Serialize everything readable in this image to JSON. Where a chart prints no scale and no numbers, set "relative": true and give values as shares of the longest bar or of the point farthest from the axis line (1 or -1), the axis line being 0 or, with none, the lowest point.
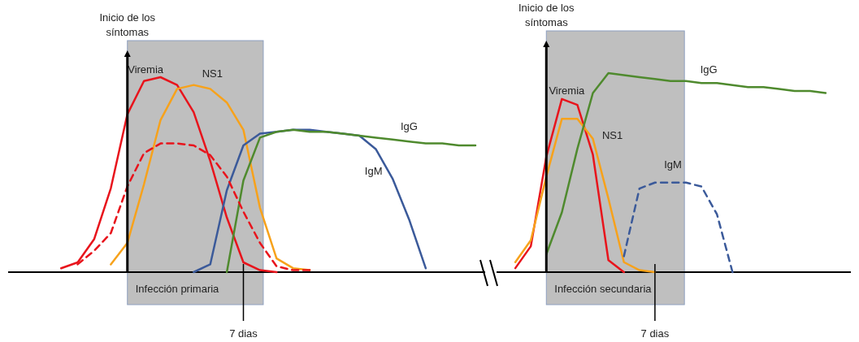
{
  "chart_data": [
    {
      "type": "line",
      "relative": true,
      "categories": [
        null,
        null,
        null,
        null,
        null,
        null,
        null,
        null,
        null,
        null,
        null,
        null,
        null,
        null,
        null,
        null,
        null,
        null,
        null,
        null,
        null,
        null,
        null,
        null,
        null,
        null,
        null,
        null,
        null
      ],
      "annotations": [
        "Inicio de los síntomas",
        "7 dias",
        "Infección primaria"
      ],
      "series": [
        {
          "name": "Viremia",
          "color": "#e8141c",
          "values": [
            null,
            null,
            null,
            0.02,
            0.05,
            0.17,
            0.43,
            0.81,
            0.98,
            1.0,
            0.96,
            0.82,
            0.57,
            0.28,
            0.05,
            0.01,
            0,
            null,
            null,
            null,
            null,
            null,
            null,
            null,
            null,
            null,
            null,
            null,
            null
          ]
        },
        {
          "color": "#e8141c",
          "line_style": "dashed",
          "values": [
            null,
            null,
            null,
            null,
            0.04,
            0.11,
            0.2,
            0.44,
            0.61,
            0.66,
            0.66,
            0.65,
            0.6,
            0.49,
            0.31,
            0.15,
            0.03,
            0.01,
            0.01,
            null,
            null,
            null,
            null,
            null,
            null,
            null,
            null,
            null,
            null
          ]
        },
        {
          "name": "NS1",
          "color": "#f7a21b",
          "values": [
            null,
            null,
            null,
            null,
            null,
            null,
            0.04,
            0.15,
            0.45,
            0.78,
            0.94,
            0.96,
            0.94,
            0.87,
            0.73,
            0.33,
            0.07,
            0.02,
            0.01,
            null,
            null,
            null,
            null,
            null,
            null,
            null,
            null,
            null,
            null
          ]
        },
        {
          "name": "IgM",
          "color": "#3b5a9a",
          "values": [
            null,
            null,
            null,
            null,
            null,
            null,
            null,
            null,
            null,
            null,
            null,
            0,
            0.04,
            0.42,
            0.65,
            0.71,
            0.72,
            0.73,
            0.73,
            0.72,
            0.71,
            0.7,
            0.63,
            0.48,
            0.27,
            0.02,
            null,
            null,
            null
          ]
        },
        {
          "name": "IgG",
          "color": "#4f8a2e",
          "values": [
            null,
            null,
            null,
            null,
            null,
            null,
            null,
            null,
            null,
            null,
            null,
            null,
            null,
            0,
            0.47,
            0.69,
            0.72,
            0.73,
            0.72,
            0.72,
            0.71,
            0.7,
            0.69,
            0.68,
            0.67,
            0.66,
            0.66,
            0.65,
            0.65
          ]
        }
      ]
    },
    {
      "type": "line",
      "relative": true,
      "categories": [
        null,
        null,
        null,
        null,
        null,
        null,
        null,
        null,
        null,
        null,
        null,
        null,
        null,
        null,
        null,
        null,
        null,
        null,
        null,
        null,
        null,
        null,
        null
      ],
      "annotations": [
        "Inicio de los síntomas",
        "7 dias",
        "Infección secundaria"
      ],
      "series": [
        {
          "name": "Viremia",
          "color": "#e8141c",
          "values": [
            null,
            0.02,
            0.13,
            0.58,
            0.87,
            0.84,
            0.59,
            0.06,
            0,
            null,
            null,
            null,
            null,
            null,
            null,
            null,
            null,
            null,
            null,
            null,
            null,
            null,
            null
          ]
        },
        {
          "name": "NS1",
          "color": "#f7a21b",
          "values": [
            null,
            0.05,
            0.16,
            0.48,
            0.77,
            0.77,
            0.67,
            0.37,
            0.05,
            0.01,
            0,
            null,
            null,
            null,
            null,
            null,
            null,
            null,
            null,
            null,
            null,
            null,
            null
          ]
        },
        {
          "name": "IgG",
          "color": "#4f8a2e",
          "values": [
            null,
            null,
            null,
            0.09,
            0.3,
            0.62,
            0.9,
            1.0,
            0.99,
            0.98,
            0.97,
            0.96,
            0.96,
            0.95,
            0.95,
            0.94,
            0.93,
            0.93,
            0.92,
            0.91,
            0.91,
            0.9,
            null
          ]
        },
        {
          "name": "IgM",
          "color": "#3b5a9a",
          "line_style": "dashed",
          "values": [
            null,
            null,
            null,
            null,
            null,
            null,
            null,
            null,
            0.08,
            0.42,
            0.45,
            0.45,
            0.45,
            0.43,
            0.29,
            0,
            null,
            null,
            null,
            null,
            null,
            null,
            null
          ]
        }
      ]
    }
  ]
}
